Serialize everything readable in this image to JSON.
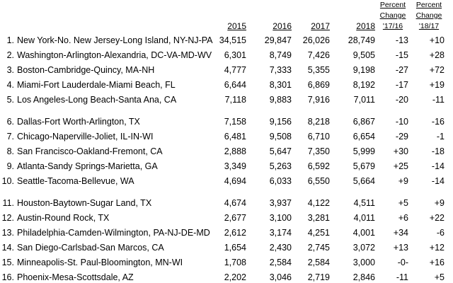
{
  "table": {
    "columns": [
      "2015",
      "2016",
      "2017",
      "2018",
      "Percent Change '17/16",
      "Percent Change '18/17"
    ],
    "rows": [
      [
        "1.",
        "New York-No. New Jersey-Long Island, NY-NJ-PA",
        "34,515",
        "29,847",
        "26,026",
        "28,749",
        "-13",
        "+10"
      ],
      [
        "2.",
        "Washington-Arlington-Alexandria, DC-VA-MD-WV",
        "6,301",
        "8,749",
        "7,426",
        "9,505",
        "-15",
        "+28"
      ],
      [
        "3.",
        "Boston-Cambridge-Quincy, MA-NH",
        "4,777",
        "7,333",
        "5,355",
        "9,198",
        "-27",
        "+72"
      ],
      [
        "4.",
        "Miami-Fort Lauderdale-Miami Beach, FL",
        "6,644",
        "8,301",
        "6,869",
        "8,192",
        "-17",
        "+19"
      ],
      [
        "5.",
        "Los Angeles-Long Beach-Santa Ana, CA",
        "7,118",
        "9,883",
        "7,916",
        "7,011",
        "-20",
        "-11"
      ],
      [
        "6.",
        "Dallas-Fort Worth-Arlington, TX",
        "7,158",
        "9,156",
        "8,218",
        "6,867",
        "-10",
        "-16"
      ],
      [
        "7.",
        "Chicago-Naperville-Joliet, IL-IN-WI",
        "6,481",
        "9,508",
        "6,710",
        "6,654",
        "-29",
        "-1"
      ],
      [
        "8.",
        "San Francisco-Oakland-Fremont, CA",
        "2,888",
        "5,647",
        "7,350",
        "5,999",
        "+30",
        "-18"
      ],
      [
        "9.",
        "Atlanta-Sandy Springs-Marietta, GA",
        "3,349",
        "5,263",
        "6,592",
        "5,679",
        "+25",
        "-14"
      ],
      [
        "10.",
        "Seattle-Tacoma-Bellevue, WA",
        "4,694",
        "6,033",
        "6,550",
        "5,664",
        "+9",
        "-14"
      ],
      [
        "11.",
        "Houston-Baytown-Sugar Land, TX",
        "4,674",
        "3,937",
        "4,122",
        "4,511",
        "+5",
        "+9"
      ],
      [
        "12.",
        "Austin-Round Rock, TX",
        "2,677",
        "3,100",
        "3,281",
        "4,011",
        "+6",
        "+22"
      ],
      [
        "13.",
        "Philadelphia-Camden-Wilmington, PA-NJ-DE-MD",
        "2,612",
        "3,174",
        "4,251",
        "4,001",
        "+34",
        "-6"
      ],
      [
        "14.",
        "San Diego-Carlsbad-San Marcos, CA",
        "1,654",
        "2,430",
        "2,745",
        "3,072",
        "+13",
        "+12"
      ],
      [
        "15.",
        "Minneapolis-St. Paul-Bloomington, MN-WI",
        "1,708",
        "2,584",
        "2,584",
        "3,000",
        "-0-",
        "+16"
      ],
      [
        "16.",
        "Phoenix-Mesa-Scottsdale, AZ",
        "2,202",
        "3,046",
        "2,719",
        "2,846",
        "-11",
        "+5"
      ]
    ]
  }
}
